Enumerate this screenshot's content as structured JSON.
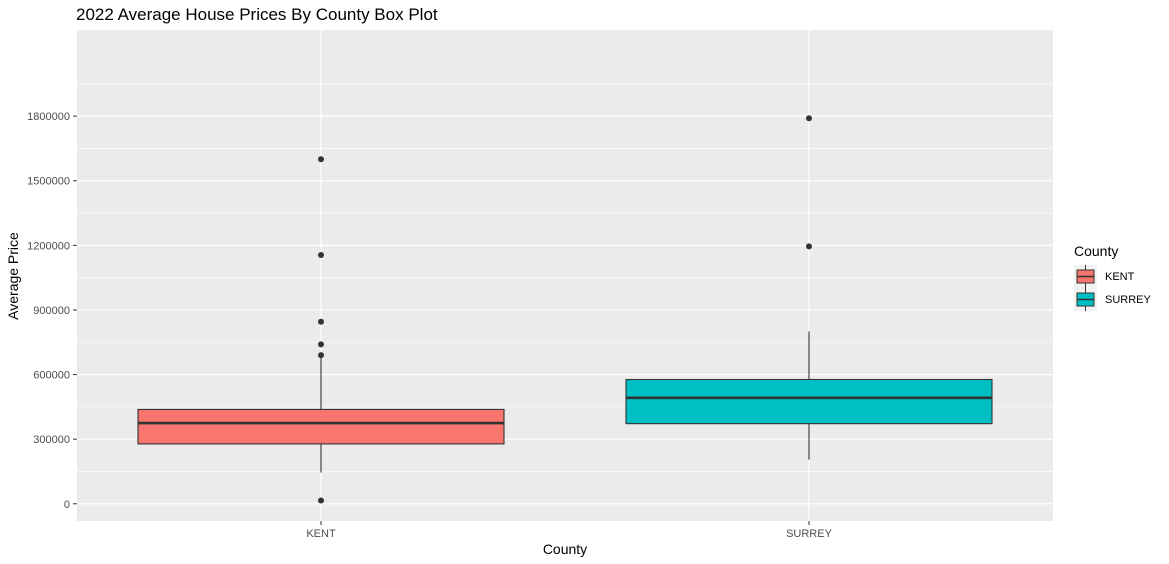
{
  "chart_data": {
    "type": "box",
    "title": "2022 Average House Prices By County Box Plot",
    "xlabel": "County",
    "ylabel": "Average Price",
    "categories": [
      "KENT",
      "SURREY"
    ],
    "ylim": [
      -80000,
      2200000
    ],
    "yticks": [
      0,
      300000,
      600000,
      900000,
      1200000,
      1500000,
      1800000
    ],
    "ytick_labels": [
      "0",
      "300000",
      "600000",
      "900000",
      "1200000",
      "1500000",
      "1800000"
    ],
    "grid": true,
    "legend": {
      "title": "County",
      "position": "right",
      "entries": [
        {
          "label": "KENT",
          "color": "#F8766D"
        },
        {
          "label": "SURREY",
          "color": "#00BFC4"
        }
      ]
    },
    "boxes": [
      {
        "category": "KENT",
        "color": "#F8766D",
        "whisker_low": 145000,
        "q1": 278000,
        "median": 375000,
        "q3": 438000,
        "whisker_high": 690000,
        "outliers": [
          15000,
          690000,
          740000,
          845000,
          1155000,
          1600000
        ]
      },
      {
        "category": "SURREY",
        "color": "#00BFC4",
        "whisker_low": 205000,
        "q1": 372000,
        "median": 492000,
        "q3": 577000,
        "whisker_high": 800000,
        "outliers": [
          1195000,
          1790000
        ]
      }
    ]
  }
}
